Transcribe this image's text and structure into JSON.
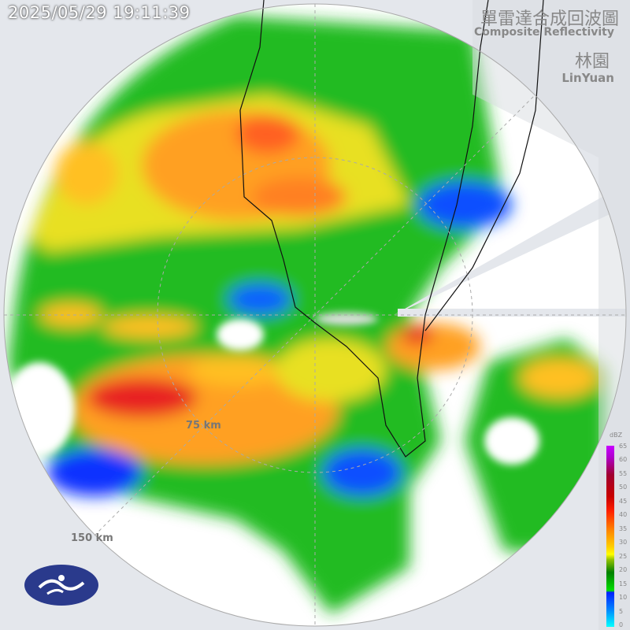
{
  "timestamp": "2025/05/29 19:11:39",
  "title_zh": "單雷達合成回波圖",
  "title_en": "Composite Reflectivity",
  "station_zh": "林園",
  "station_en": "LinYuan",
  "range_rings": [
    "75 km",
    "150 km"
  ],
  "legend": {
    "unit": "dBZ",
    "ticks": [
      "65",
      "60",
      "55",
      "50",
      "45",
      "40",
      "35",
      "30",
      "25",
      "20",
      "15",
      "10",
      "5",
      "0"
    ]
  },
  "logo_icon": "cwa-logo-icon"
}
